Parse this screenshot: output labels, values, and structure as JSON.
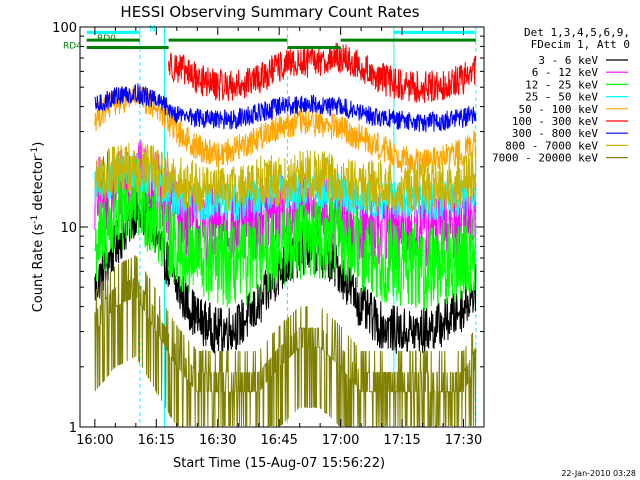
{
  "chart_data": {
    "type": "line",
    "title": "HESSI Observing Summary Count Rates",
    "xlabel": "Start Time (15-Aug-07 15:56:22)",
    "ylabel": "Count Rate (s⁻¹ detector⁻¹)",
    "ylabel_parts": {
      "main": "Count Rate (s",
      "sup1": "-1",
      "mid": " detector",
      "sup2": "-1",
      "end": ")"
    },
    "yscale": "log",
    "ylim": [
      1,
      100
    ],
    "y_tick_labels": [
      {
        "value": 1,
        "label": "1"
      },
      {
        "value": 10,
        "label": "10"
      },
      {
        "value": 100,
        "label": "100"
      }
    ],
    "xlim": [
      "15:56:22",
      "17:35:00"
    ],
    "x_tick_labels": [
      "16:00",
      "16:15",
      "16:30",
      "16:45",
      "17:00",
      "17:15",
      "17:30"
    ],
    "legend_header": [
      "Det 1,3,4,5,6,9,",
      "FDecim 1, Att 0"
    ],
    "legend_placement": "right",
    "footer_date": "22-Jan-2010 03:28",
    "series": [
      {
        "name": "3 - 6 keV",
        "color": "#000000",
        "x": [
          "16:00",
          "16:05",
          "16:10",
          "16:15",
          "16:20",
          "16:25",
          "16:30",
          "16:35",
          "16:40",
          "16:45",
          "16:50",
          "16:55",
          "17:00",
          "17:05",
          "17:10",
          "17:15",
          "17:20",
          "17:25",
          "17:30",
          "17:33"
        ],
        "values": [
          5,
          8,
          12,
          9,
          5,
          3.5,
          3,
          3.2,
          4,
          6,
          7.5,
          7.5,
          6,
          4,
          3.2,
          3,
          3,
          3.3,
          4,
          5
        ]
      },
      {
        "name": "6 - 12 keV",
        "color": "#ff00ff",
        "x": [
          "16:00",
          "16:05",
          "16:10",
          "16:15",
          "16:20",
          "16:25",
          "16:30",
          "16:35",
          "16:40",
          "16:45",
          "16:50",
          "16:55",
          "17:00",
          "17:05",
          "17:10",
          "17:15",
          "17:20",
          "17:25",
          "17:30",
          "17:33"
        ],
        "values": [
          14,
          16,
          18,
          15,
          12,
          10,
          10,
          10,
          11,
          12,
          12,
          12,
          11,
          10,
          10,
          9.5,
          9.5,
          10,
          11,
          12
        ]
      },
      {
        "name": "12 - 25 keV",
        "color": "#00ff00",
        "x": [
          "16:00",
          "16:05",
          "16:10",
          "16:15",
          "16:20",
          "16:25",
          "16:30",
          "16:35",
          "16:40",
          "16:45",
          "16:50",
          "16:55",
          "17:00",
          "17:05",
          "17:10",
          "17:15",
          "17:20",
          "17:25",
          "17:30",
          "17:33"
        ],
        "values": [
          8,
          11,
          14,
          11,
          8,
          7,
          6.5,
          6.5,
          7,
          8,
          9,
          9,
          8.5,
          7.5,
          7,
          6.5,
          6.3,
          6.5,
          7,
          8
        ]
      },
      {
        "name": "25 - 50 keV",
        "color": "#00ffff",
        "x": [
          "16:00",
          "16:05",
          "16:10",
          "16:15",
          "16:20",
          "16:25",
          "16:30",
          "16:35",
          "16:40",
          "16:45",
          "16:50",
          "16:55",
          "17:00",
          "17:05",
          "17:10",
          "17:15",
          "17:20",
          "17:25",
          "17:30",
          "17:33"
        ],
        "values": [
          16,
          18,
          19,
          17,
          14,
          13.5,
          13.5,
          13.5,
          14,
          15,
          15.5,
          15.5,
          15,
          14,
          13.5,
          13.5,
          13.5,
          13.5,
          14,
          15
        ]
      },
      {
        "name": "50 - 100 keV",
        "color": "#ffa500",
        "x": [
          "16:00",
          "16:05",
          "16:10",
          "16:15",
          "16:20",
          "16:25",
          "16:30",
          "16:35",
          "16:40",
          "16:45",
          "16:50",
          "16:55",
          "17:00",
          "17:05",
          "17:10",
          "17:15",
          "17:20",
          "17:25",
          "17:30",
          "17:33"
        ],
        "values": [
          35,
          42,
          45,
          40,
          30,
          25,
          23,
          25,
          28,
          32,
          33,
          33,
          31,
          28,
          25,
          22,
          21,
          22,
          24,
          26
        ]
      },
      {
        "name": "100 - 300 keV",
        "color": "#ff0000",
        "x": [
          "16:18",
          "16:20",
          "16:25",
          "16:30",
          "16:35",
          "16:40",
          "16:45",
          "16:48",
          "17:00",
          "17:05",
          "17:10",
          "17:15",
          "17:20",
          "17:25",
          "17:30",
          "17:33"
        ],
        "values": [
          65,
          63,
          55,
          51,
          51,
          55,
          63,
          65,
          70,
          63,
          55,
          51,
          50,
          51,
          55,
          62
        ]
      },
      {
        "name": "300 - 800 keV",
        "color": "#0000ff",
        "x": [
          "16:00",
          "16:05",
          "16:10",
          "16:15",
          "16:20",
          "16:25",
          "16:30",
          "16:35",
          "16:40",
          "16:45",
          "16:50",
          "16:55",
          "17:00",
          "17:05",
          "17:10",
          "17:15",
          "17:20",
          "17:25",
          "17:30",
          "17:33"
        ],
        "values": [
          40,
          45,
          47,
          43,
          37,
          35,
          34,
          35,
          37,
          40,
          41,
          41,
          40,
          37,
          35,
          34,
          33,
          34,
          35,
          37
        ]
      },
      {
        "name": "800 - 7000 keV",
        "color": "#c8b400",
        "x": [
          "16:00",
          "16:05",
          "16:10",
          "16:15",
          "16:20",
          "16:25",
          "16:30",
          "16:35",
          "16:40",
          "16:45",
          "16:50",
          "16:55",
          "17:00",
          "17:05",
          "17:10",
          "17:15",
          "17:20",
          "17:25",
          "17:30",
          "17:33"
        ],
        "values": [
          17,
          19,
          20,
          19,
          17,
          16,
          16,
          16,
          17,
          17,
          18,
          18,
          17,
          16,
          16,
          16,
          16,
          16,
          17,
          18
        ]
      },
      {
        "name": "7000 - 20000 keV",
        "color": "#808000",
        "x": [
          "16:00",
          "16:05",
          "16:10",
          "16:15",
          "16:20",
          "16:25",
          "16:30",
          "16:35",
          "16:40",
          "16:45",
          "16:50",
          "16:55",
          "17:00",
          "17:05",
          "17:10",
          "17:15",
          "17:20",
          "17:25",
          "17:30",
          "17:33"
        ],
        "values": [
          3,
          4,
          4.5,
          3,
          2,
          1.5,
          1.5,
          1.5,
          1.5,
          2,
          2.5,
          2.5,
          2,
          1.5,
          1.5,
          1.5,
          1.5,
          1.5,
          1.5,
          2
        ]
      }
    ],
    "vertical_lines": [
      {
        "time": "16:11",
        "style": "dashed",
        "color": "#00ffff"
      },
      {
        "time": "16:17",
        "style": "solid",
        "color": "#00ffff"
      },
      {
        "time": "16:47",
        "style": "dashed",
        "color": "#00ffff"
      },
      {
        "time": "17:13",
        "style": "solid",
        "color": "#00ffff"
      },
      {
        "time": "17:33",
        "style": "dashed",
        "color": "#00ffff"
      }
    ],
    "flag_bars": [
      {
        "label": "N",
        "color": "#00ffff",
        "value": 94,
        "segments": [
          [
            "15:58",
            "16:11"
          ],
          [
            "17:13",
            "17:33"
          ]
        ]
      },
      {
        "label": "RD0",
        "color": "#008000",
        "value": 86,
        "segments": [
          [
            "15:58",
            "16:11"
          ],
          [
            "16:18",
            "16:47"
          ],
          [
            "17:00",
            "17:33"
          ]
        ]
      },
      {
        "label": "RD4",
        "color": "#008000",
        "value": 79,
        "segments": [
          [
            "15:58",
            "16:18"
          ],
          [
            "16:47",
            "17:00"
          ]
        ]
      }
    ]
  }
}
